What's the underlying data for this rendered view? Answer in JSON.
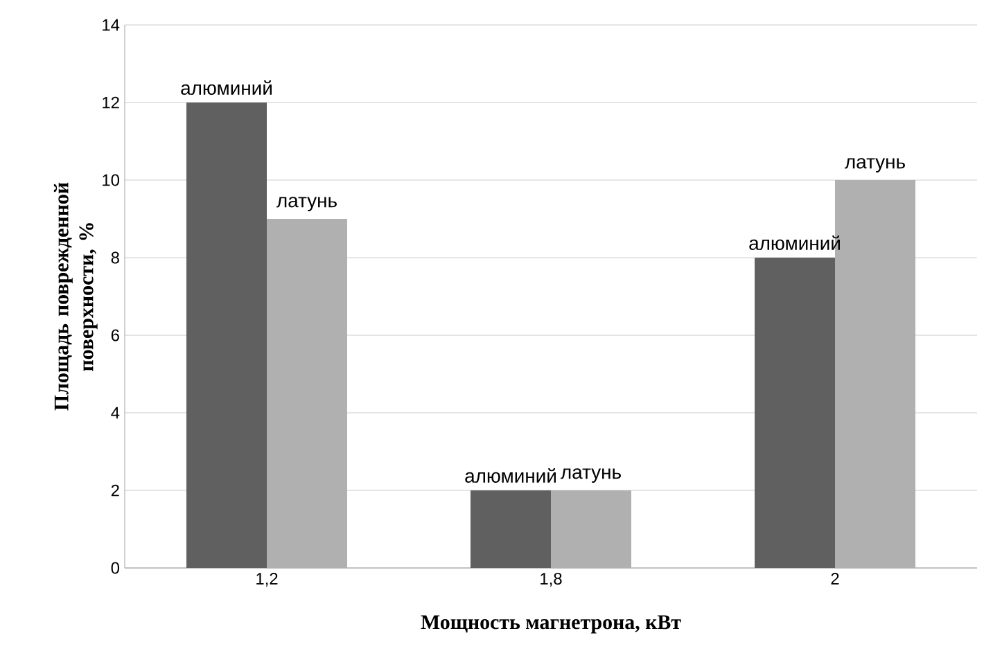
{
  "chart_data": {
    "type": "bar",
    "xlabel": "Мощность магнетрона, кВт",
    "ylabel": "Площадь поврежденной поверхности, %",
    "categories": [
      "1,2",
      "1,8",
      "2"
    ],
    "series": [
      {
        "name": "алюминий",
        "color": "#606060",
        "values": [
          12,
          2,
          8
        ]
      },
      {
        "name": "латунь",
        "color": "#b0b0b0",
        "values": [
          9,
          2,
          10
        ]
      }
    ],
    "ylim": [
      0,
      14
    ],
    "yticks": [
      0,
      2,
      4,
      6,
      8,
      10,
      12,
      14
    ],
    "grid": "y"
  }
}
